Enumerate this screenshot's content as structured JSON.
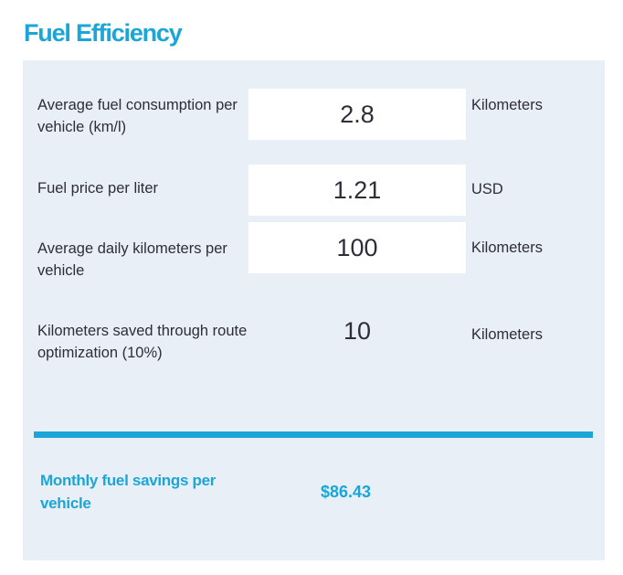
{
  "section_title": "Fuel Efficiency",
  "rows": [
    {
      "label": "Average fuel consumption per vehicle (km/l)",
      "value": "2.8",
      "unit": "Kilometers"
    },
    {
      "label": "Fuel price per liter",
      "value": "1.21",
      "unit": "USD"
    },
    {
      "label": "Average daily kilometers per vehicle",
      "value": "100",
      "unit": "Kilometers"
    },
    {
      "label": "Kilometers saved through route optimization (10%)",
      "value": "10",
      "unit": "Kilometers"
    }
  ],
  "result": {
    "label": "Monthly fuel savings per vehicle",
    "value": "$86.43"
  },
  "colors": {
    "accent": "#1aa6d8",
    "panel_background": "#e8eff6",
    "text": "#2e2e3a"
  }
}
